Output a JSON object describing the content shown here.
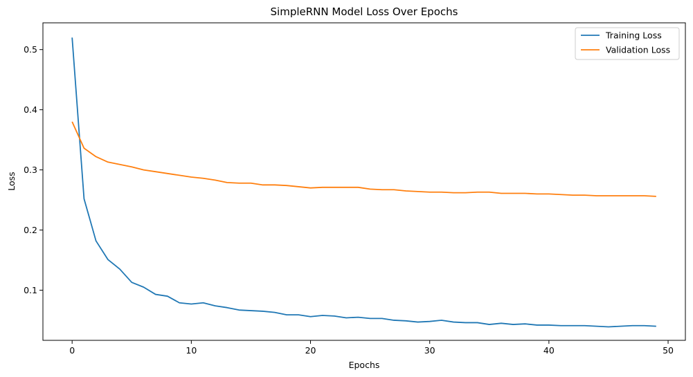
{
  "chart_data": {
    "type": "line",
    "title": "SimpleRNN Model Loss Over Epochs",
    "xlabel": "Epochs",
    "ylabel": "Loss",
    "xlim": [
      -2.45,
      51.45
    ],
    "ylim": [
      0.0166,
      0.5445
    ],
    "x_ticks": [
      0,
      10,
      20,
      30,
      40,
      50
    ],
    "y_ticks": [
      0.1,
      0.2,
      0.3,
      0.4,
      0.5
    ],
    "grid": false,
    "legend_position": "top-right",
    "x": [
      0,
      1,
      2,
      3,
      4,
      5,
      6,
      7,
      8,
      9,
      10,
      11,
      12,
      13,
      14,
      15,
      16,
      17,
      18,
      19,
      20,
      21,
      22,
      23,
      24,
      25,
      26,
      27,
      28,
      29,
      30,
      31,
      32,
      33,
      34,
      35,
      36,
      37,
      38,
      39,
      40,
      41,
      42,
      43,
      44,
      45,
      46,
      47,
      48,
      49
    ],
    "series": [
      {
        "name": "Training Loss",
        "color": "#1f77b4",
        "values": [
          0.52,
          0.252,
          0.182,
          0.151,
          0.135,
          0.113,
          0.105,
          0.093,
          0.09,
          0.079,
          0.077,
          0.079,
          0.074,
          0.071,
          0.067,
          0.066,
          0.065,
          0.063,
          0.059,
          0.059,
          0.056,
          0.058,
          0.057,
          0.054,
          0.055,
          0.053,
          0.053,
          0.05,
          0.049,
          0.047,
          0.048,
          0.05,
          0.047,
          0.046,
          0.046,
          0.043,
          0.045,
          0.043,
          0.044,
          0.042,
          0.042,
          0.041,
          0.041,
          0.041,
          0.04,
          0.039,
          0.04,
          0.041,
          0.041,
          0.04
        ]
      },
      {
        "name": "Validation Loss",
        "color": "#ff7f0e",
        "values": [
          0.38,
          0.336,
          0.322,
          0.313,
          0.309,
          0.305,
          0.3,
          0.297,
          0.294,
          0.291,
          0.288,
          0.286,
          0.283,
          0.279,
          0.278,
          0.278,
          0.275,
          0.275,
          0.274,
          0.272,
          0.27,
          0.271,
          0.271,
          0.271,
          0.271,
          0.268,
          0.267,
          0.267,
          0.265,
          0.264,
          0.263,
          0.263,
          0.262,
          0.262,
          0.263,
          0.263,
          0.261,
          0.261,
          0.261,
          0.26,
          0.26,
          0.259,
          0.258,
          0.258,
          0.257,
          0.257,
          0.257,
          0.257,
          0.257,
          0.256
        ]
      }
    ]
  }
}
